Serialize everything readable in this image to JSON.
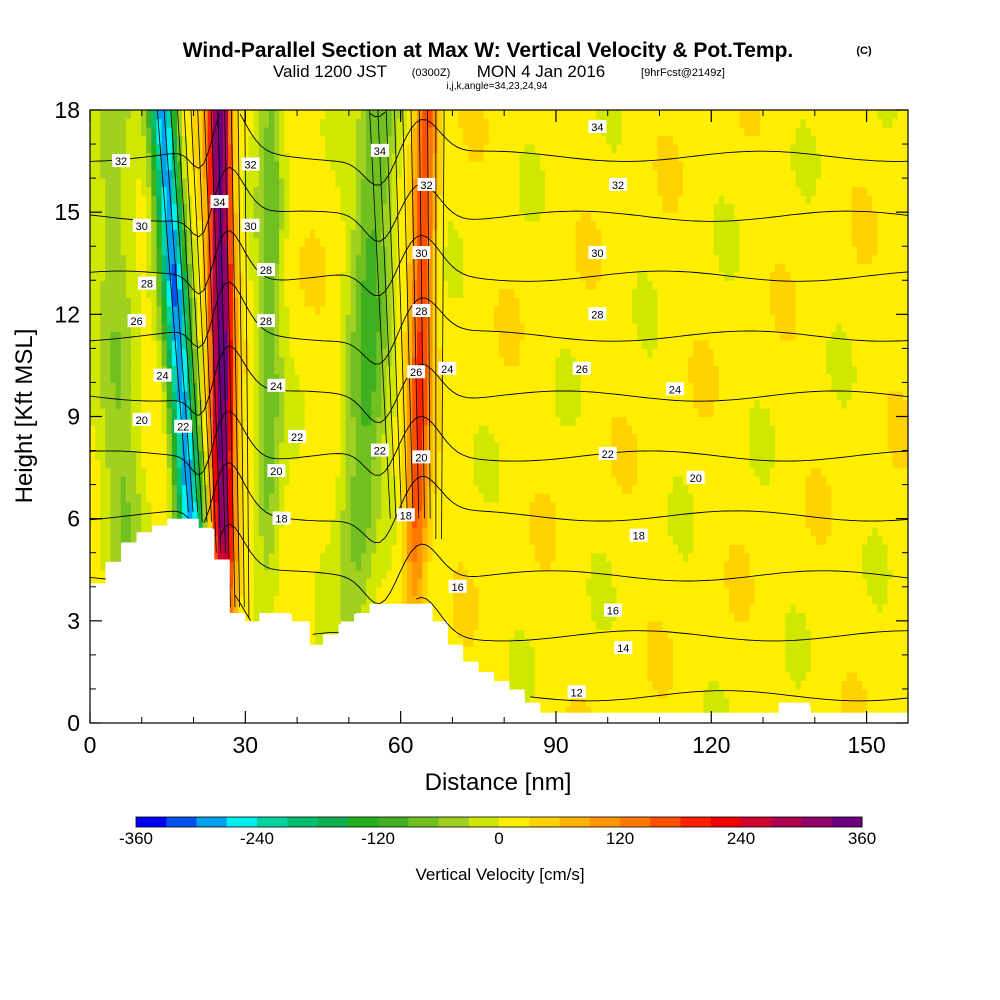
{
  "title": {
    "main": "Wind-Parallel Section at Max W: Vertical Velocity & Pot.Temp.",
    "main_suffix": "(C)",
    "valid_a": "Valid 1200 JST",
    "valid_b": "(0300Z)",
    "valid_c": "MON 4 Jan 2016",
    "valid_d": "[9hrFcst@2149z]",
    "indices": "i,j,k,angle=34,23,24,94"
  },
  "chart_data": {
    "type": "heatmap",
    "xlabel": "Distance [nm]",
    "ylabel": "Height [Kft MSL]",
    "xlim": [
      0,
      158
    ],
    "ylim": [
      0,
      18
    ],
    "x_ticks": [
      0,
      30,
      60,
      90,
      120,
      150
    ],
    "x_tick_labels": [
      "0",
      "30",
      "60",
      "90",
      "120",
      "150"
    ],
    "y_ticks": [
      0,
      3,
      6,
      9,
      12,
      15,
      18
    ],
    "y_tick_labels": [
      "0",
      "3",
      "6",
      "9",
      "12",
      "15",
      "18"
    ],
    "colorbar": {
      "title": "Vertical Velocity [cm/s]",
      "ticks": [
        "-360",
        "-240",
        "-120",
        "0",
        "120",
        "240",
        "360"
      ],
      "tick_values": [
        -360,
        -240,
        -120,
        0,
        120,
        240,
        360
      ],
      "levels": [
        -360,
        -330,
        -300,
        -270,
        -240,
        -210,
        -180,
        -150,
        -120,
        -90,
        -60,
        -30,
        0,
        30,
        60,
        90,
        120,
        150,
        180,
        210,
        240,
        270,
        300,
        330,
        360
      ],
      "colors": [
        "#0000f5",
        "#0050f0",
        "#00a0ee",
        "#00f0f0",
        "#00d2a0",
        "#00c070",
        "#10b050",
        "#20b020",
        "#40b020",
        "#70c020",
        "#a0d020",
        "#d0e800",
        "#ffee00",
        "#ffd200",
        "#ffb400",
        "#ff9600",
        "#ff7800",
        "#ff5000",
        "#ff2000",
        "#f00000",
        "#d00030",
        "#b00050",
        "#900068",
        "#6a0080"
      ]
    },
    "terrain_profile": {
      "x": [
        0,
        3,
        6,
        9,
        12,
        15,
        18,
        21,
        24,
        27,
        30,
        33,
        36,
        39,
        42,
        45,
        48,
        51,
        54,
        57,
        60,
        63,
        66,
        69,
        72,
        75,
        78,
        81,
        84,
        87,
        90,
        100,
        110,
        120,
        130,
        133,
        136,
        139,
        142,
        158
      ],
      "height_kft": [
        4.1,
        4.7,
        5.3,
        5.6,
        5.8,
        6.0,
        6.0,
        5.7,
        4.8,
        3.2,
        2.9,
        3.2,
        3.2,
        2.9,
        2.3,
        2.6,
        2.9,
        3.2,
        3.5,
        3.5,
        3.5,
        3.5,
        2.9,
        2.3,
        1.8,
        1.5,
        1.2,
        0.9,
        0.6,
        0.3,
        0.3,
        0.3,
        0.3,
        0.3,
        0.3,
        0.6,
        0.6,
        0.3,
        0.3,
        0.3
      ]
    },
    "vertical_velocity_features": [
      {
        "name": "downdraft",
        "x_base": 22,
        "x_top": 14,
        "peak_cm_s": -300,
        "half_width_nm": 2.6
      },
      {
        "name": "updraft",
        "x_base": 26,
        "x_top": 25,
        "peak_cm_s": 340,
        "half_width_nm": 2.2
      },
      {
        "name": "weak-downdraft",
        "x_base": 34,
        "x_top": 35,
        "peak_cm_s": -90,
        "half_width_nm": 2.5
      },
      {
        "name": "weak-downdraft",
        "x_base": 50,
        "x_top": 56,
        "peak_cm_s": -110,
        "half_width_nm": 4
      },
      {
        "name": "updraft",
        "x_base": 62,
        "x_top": 65,
        "peak_cm_s": 160,
        "half_width_nm": 2.2
      },
      {
        "name": "weak-downdraft",
        "x_base": 8,
        "x_top": 4,
        "peak_cm_s": -70,
        "half_width_nm": 4
      }
    ],
    "theta_contours": {
      "levels": [
        12,
        14,
        16,
        18,
        20,
        22,
        24,
        26,
        28,
        30,
        32,
        34
      ],
      "labels": [
        {
          "text": "12",
          "x": 94,
          "y": 0.9
        },
        {
          "text": "14",
          "x": 103,
          "y": 2.2
        },
        {
          "text": "16",
          "x": 101,
          "y": 3.3
        },
        {
          "text": "16",
          "x": 71,
          "y": 4.0
        },
        {
          "text": "18",
          "x": 106,
          "y": 5.5
        },
        {
          "text": "18",
          "x": 37,
          "y": 6.0
        },
        {
          "text": "18",
          "x": 61,
          "y": 6.1
        },
        {
          "text": "20",
          "x": 117,
          "y": 7.2
        },
        {
          "text": "20",
          "x": 36,
          "y": 7.4
        },
        {
          "text": "20",
          "x": 64,
          "y": 7.8
        },
        {
          "text": "20",
          "x": 10,
          "y": 8.9
        },
        {
          "text": "22",
          "x": 100,
          "y": 7.9
        },
        {
          "text": "22",
          "x": 40,
          "y": 8.4
        },
        {
          "text": "22",
          "x": 56,
          "y": 8.0
        },
        {
          "text": "22",
          "x": 18,
          "y": 8.7
        },
        {
          "text": "24",
          "x": 113,
          "y": 9.8
        },
        {
          "text": "24",
          "x": 36,
          "y": 9.9
        },
        {
          "text": "24",
          "x": 69,
          "y": 10.4
        },
        {
          "text": "24",
          "x": 14,
          "y": 10.2
        },
        {
          "text": "26",
          "x": 95,
          "y": 10.4
        },
        {
          "text": "26",
          "x": 63,
          "y": 10.3
        },
        {
          "text": "26",
          "x": 9,
          "y": 11.8
        },
        {
          "text": "28",
          "x": 98,
          "y": 12.0
        },
        {
          "text": "28",
          "x": 34,
          "y": 11.8
        },
        {
          "text": "28",
          "x": 34,
          "y": 13.3
        },
        {
          "text": "28",
          "x": 64,
          "y": 12.1
        },
        {
          "text": "28",
          "x": 11,
          "y": 12.9
        },
        {
          "text": "30",
          "x": 98,
          "y": 13.8
        },
        {
          "text": "30",
          "x": 31,
          "y": 14.6
        },
        {
          "text": "30",
          "x": 64,
          "y": 13.8
        },
        {
          "text": "30",
          "x": 10,
          "y": 14.6
        },
        {
          "text": "32",
          "x": 102,
          "y": 15.8
        },
        {
          "text": "32",
          "x": 31,
          "y": 16.4
        },
        {
          "text": "32",
          "x": 65,
          "y": 15.8
        },
        {
          "text": "32",
          "x": 6,
          "y": 16.5
        },
        {
          "text": "34",
          "x": 98,
          "y": 17.5
        },
        {
          "text": "34",
          "x": 25,
          "y": 15.3
        },
        {
          "text": "34",
          "x": 56,
          "y": 16.8
        }
      ]
    }
  }
}
